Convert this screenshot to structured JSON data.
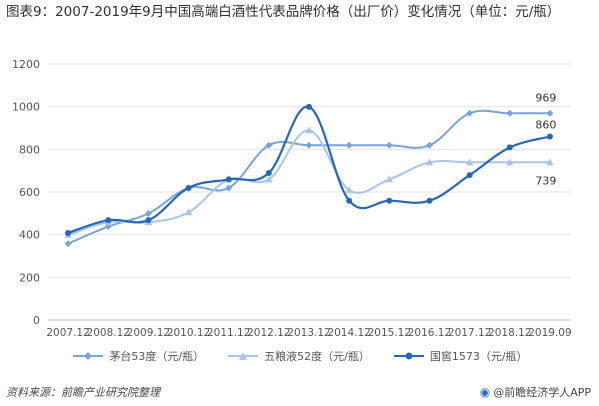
{
  "header": {
    "title": "图表9：2007-2019年9月中国高端白酒性代表品牌价格（出厂价）变化情况（单位：元/瓶）"
  },
  "chart_data": {
    "type": "line",
    "title": "图表9：2007-2019年9月中国高端白酒性代表品牌价格（出厂价）变化情况（单位：元/瓶）",
    "xlabel": "",
    "ylabel": "",
    "categories": [
      "2007.12",
      "2008.12",
      "2009.12",
      "2010.12",
      "2011.12",
      "2012.12",
      "2013.12",
      "2014.12",
      "2015.12",
      "2016.12",
      "2017.12",
      "2018.12",
      "2019.09"
    ],
    "ylim": [
      0,
      1200
    ],
    "yticks": [
      0,
      200,
      400,
      600,
      800,
      1000,
      1200
    ],
    "grid": true,
    "legend_position": "bottom",
    "series": [
      {
        "name": "茅台53度（元/瓶）",
        "color": "#7aa3d8",
        "marker": "diamond",
        "values": [
          358,
          438,
          499,
          619,
          619,
          819,
          819,
          819,
          819,
          819,
          969,
          969,
          969
        ]
      },
      {
        "name": "五粮液52度（元/瓶）",
        "color": "#a9c6ea",
        "marker": "triangle",
        "values": [
          398,
          458,
          458,
          505,
          659,
          659,
          889,
          609,
          659,
          739,
          739,
          739,
          739
        ]
      },
      {
        "name": "国窖1573（元/瓶）",
        "color": "#2867b8",
        "marker": "circle",
        "values": [
          408,
          468,
          468,
          619,
          659,
          689,
          999,
          559,
          559,
          559,
          679,
          809,
          860
        ]
      }
    ],
    "annotations": [
      {
        "text": "969",
        "series": 0,
        "index": 12
      },
      {
        "text": "860",
        "series": 2,
        "index": 12
      },
      {
        "text": "739",
        "series": 1,
        "index": 12
      }
    ]
  },
  "footer": {
    "source": "资料来源：前瞻产业研究院整理",
    "brand": "@前瞻经济学人APP",
    "brand_icon": "brand-logo-icon"
  }
}
